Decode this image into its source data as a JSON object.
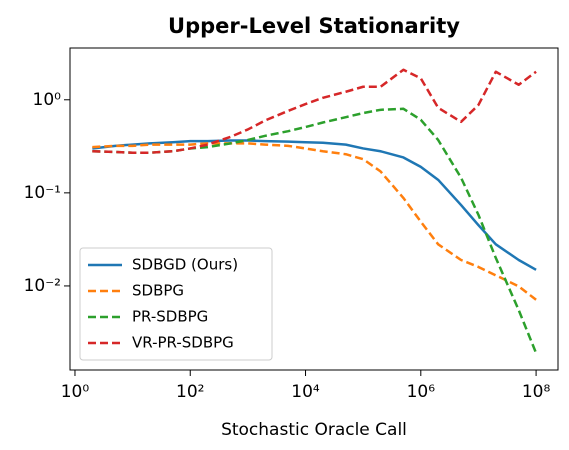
{
  "chart_data": {
    "type": "line",
    "title": "Upper-Level Stationarity",
    "xlabel": "Stochastic Oracle Call",
    "xscale": "log",
    "yscale": "log",
    "legend": "lower left",
    "x": [
      2,
      5,
      10,
      20,
      50,
      100,
      200,
      500,
      1000,
      2000,
      5000,
      10000,
      20000,
      50000,
      100000,
      200000,
      500000,
      1000000,
      2000000,
      5000000,
      10000000,
      20000000,
      50000000,
      100000000
    ],
    "series": [
      {
        "name": "SDBGD (Ours)",
        "color": "#1f77b4",
        "linestyle": "solid",
        "values": [
          0.3,
          0.32,
          0.33,
          0.34,
          0.35,
          0.36,
          0.36,
          0.365,
          0.365,
          0.36,
          0.355,
          0.35,
          0.345,
          0.33,
          0.3,
          0.28,
          0.24,
          0.19,
          0.138,
          0.074,
          0.045,
          0.028,
          0.019,
          0.0149
        ]
      },
      {
        "name": "SDBPG",
        "color": "#ff7f0e",
        "linestyle": "dashed",
        "values": [
          0.31,
          0.32,
          0.32,
          0.33,
          0.33,
          0.33,
          0.34,
          0.34,
          0.34,
          0.33,
          0.32,
          0.3,
          0.28,
          0.26,
          0.23,
          0.17,
          0.088,
          0.049,
          0.028,
          0.019,
          0.016,
          0.013,
          0.0099,
          0.0071
        ]
      },
      {
        "name": "PR-SDBPG",
        "color": "#2ca02c",
        "linestyle": "dashed",
        "values": [
          0.28,
          0.275,
          0.27,
          0.27,
          0.28,
          0.3,
          0.31,
          0.34,
          0.37,
          0.41,
          0.46,
          0.51,
          0.57,
          0.65,
          0.72,
          0.78,
          0.8,
          0.61,
          0.37,
          0.145,
          0.058,
          0.02,
          0.0055,
          0.0019
        ]
      },
      {
        "name": "VR-PR-SDBPG",
        "color": "#d62728",
        "linestyle": "dashed",
        "values": [
          0.28,
          0.275,
          0.27,
          0.27,
          0.28,
          0.3,
          0.33,
          0.4,
          0.48,
          0.6,
          0.76,
          0.9,
          1.05,
          1.22,
          1.38,
          1.38,
          2.1,
          1.7,
          0.82,
          0.58,
          0.88,
          2.0,
          1.45,
          2.0
        ]
      }
    ],
    "xlim": [
      0.82,
      240000000
    ],
    "ylim": [
      0.00125,
      3.6
    ],
    "xticks": [
      {
        "value": 1,
        "label": "10⁰"
      },
      {
        "value": 100,
        "label": "10²"
      },
      {
        "value": 10000,
        "label": "10⁴"
      },
      {
        "value": 1000000,
        "label": "10⁶"
      },
      {
        "value": 100000000,
        "label": "10⁸"
      }
    ],
    "yticks": [
      {
        "value": 0.01,
        "label": "10⁻²"
      },
      {
        "value": 0.1,
        "label": "10⁻¹"
      },
      {
        "value": 1,
        "label": "10⁰"
      }
    ]
  }
}
